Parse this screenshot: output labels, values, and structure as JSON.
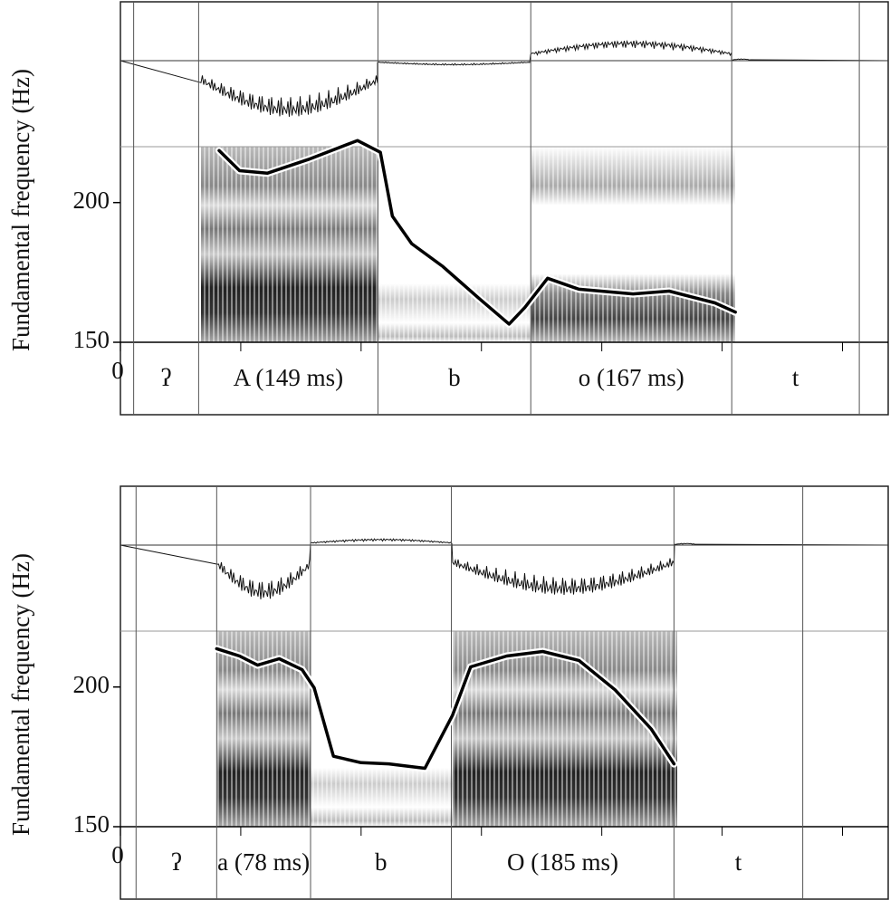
{
  "chart_data": [
    {
      "type": "line",
      "ylabel": "Fundamental frequency (Hz)",
      "color": "#000000",
      "xlim": [
        0,
        638
      ],
      "xticks": [
        0
      ],
      "minor_xticks": [
        100,
        200,
        300,
        400,
        500,
        600
      ],
      "ylim": [
        150,
        220
      ],
      "yticks": [
        150,
        200
      ],
      "x": [
        82,
        99,
        122,
        156,
        197,
        216,
        226,
        242,
        268,
        298,
        323,
        336,
        355,
        381,
        426,
        456,
        494,
        511
      ],
      "values": [
        218.6,
        211.4,
        210.5,
        215.4,
        222.2,
        218,
        195.1,
        185.3,
        177.1,
        165.7,
        156.5,
        162.4,
        172.9,
        169,
        167.3,
        168.3,
        164.1,
        160.8
      ],
      "segments": [
        {
          "label": "ʔ",
          "start": 11,
          "end": 65
        },
        {
          "label": "A (149 ms)",
          "start": 65,
          "end": 214
        },
        {
          "label": "b",
          "start": 214,
          "end": 341
        },
        {
          "label": "o (167 ms)",
          "start": 341,
          "end": 508
        },
        {
          "label": "t",
          "start": 508,
          "end": 614
        }
      ]
    },
    {
      "type": "line",
      "ylabel": "Fundamental frequency (Hz)",
      "color": "#000000",
      "xlim": [
        0,
        638
      ],
      "xticks": [
        0
      ],
      "minor_xticks": [
        100,
        200,
        300,
        400,
        500,
        600
      ],
      "ylim": [
        150,
        220
      ],
      "yticks": [
        150,
        200
      ],
      "x": [
        80,
        99,
        114,
        132,
        151,
        161,
        177,
        200,
        223,
        253,
        276,
        291,
        321,
        351,
        381,
        411,
        441,
        460
      ],
      "values": [
        213.7,
        211.1,
        207.8,
        210.1,
        206.2,
        199.7,
        175.2,
        172.9,
        172.5,
        170.9,
        189.9,
        207.2,
        211.1,
        212.7,
        209.5,
        199,
        185,
        172.5
      ],
      "segments": [
        {
          "label": "ʔ",
          "start": 13,
          "end": 80
        },
        {
          "label": "a (78 ms)",
          "start": 80,
          "end": 158
        },
        {
          "label": "b",
          "start": 158,
          "end": 275
        },
        {
          "label": "O (185 ms)",
          "start": 275,
          "end": 460
        },
        {
          "label": "t",
          "start": 460,
          "end": 567
        }
      ]
    }
  ]
}
